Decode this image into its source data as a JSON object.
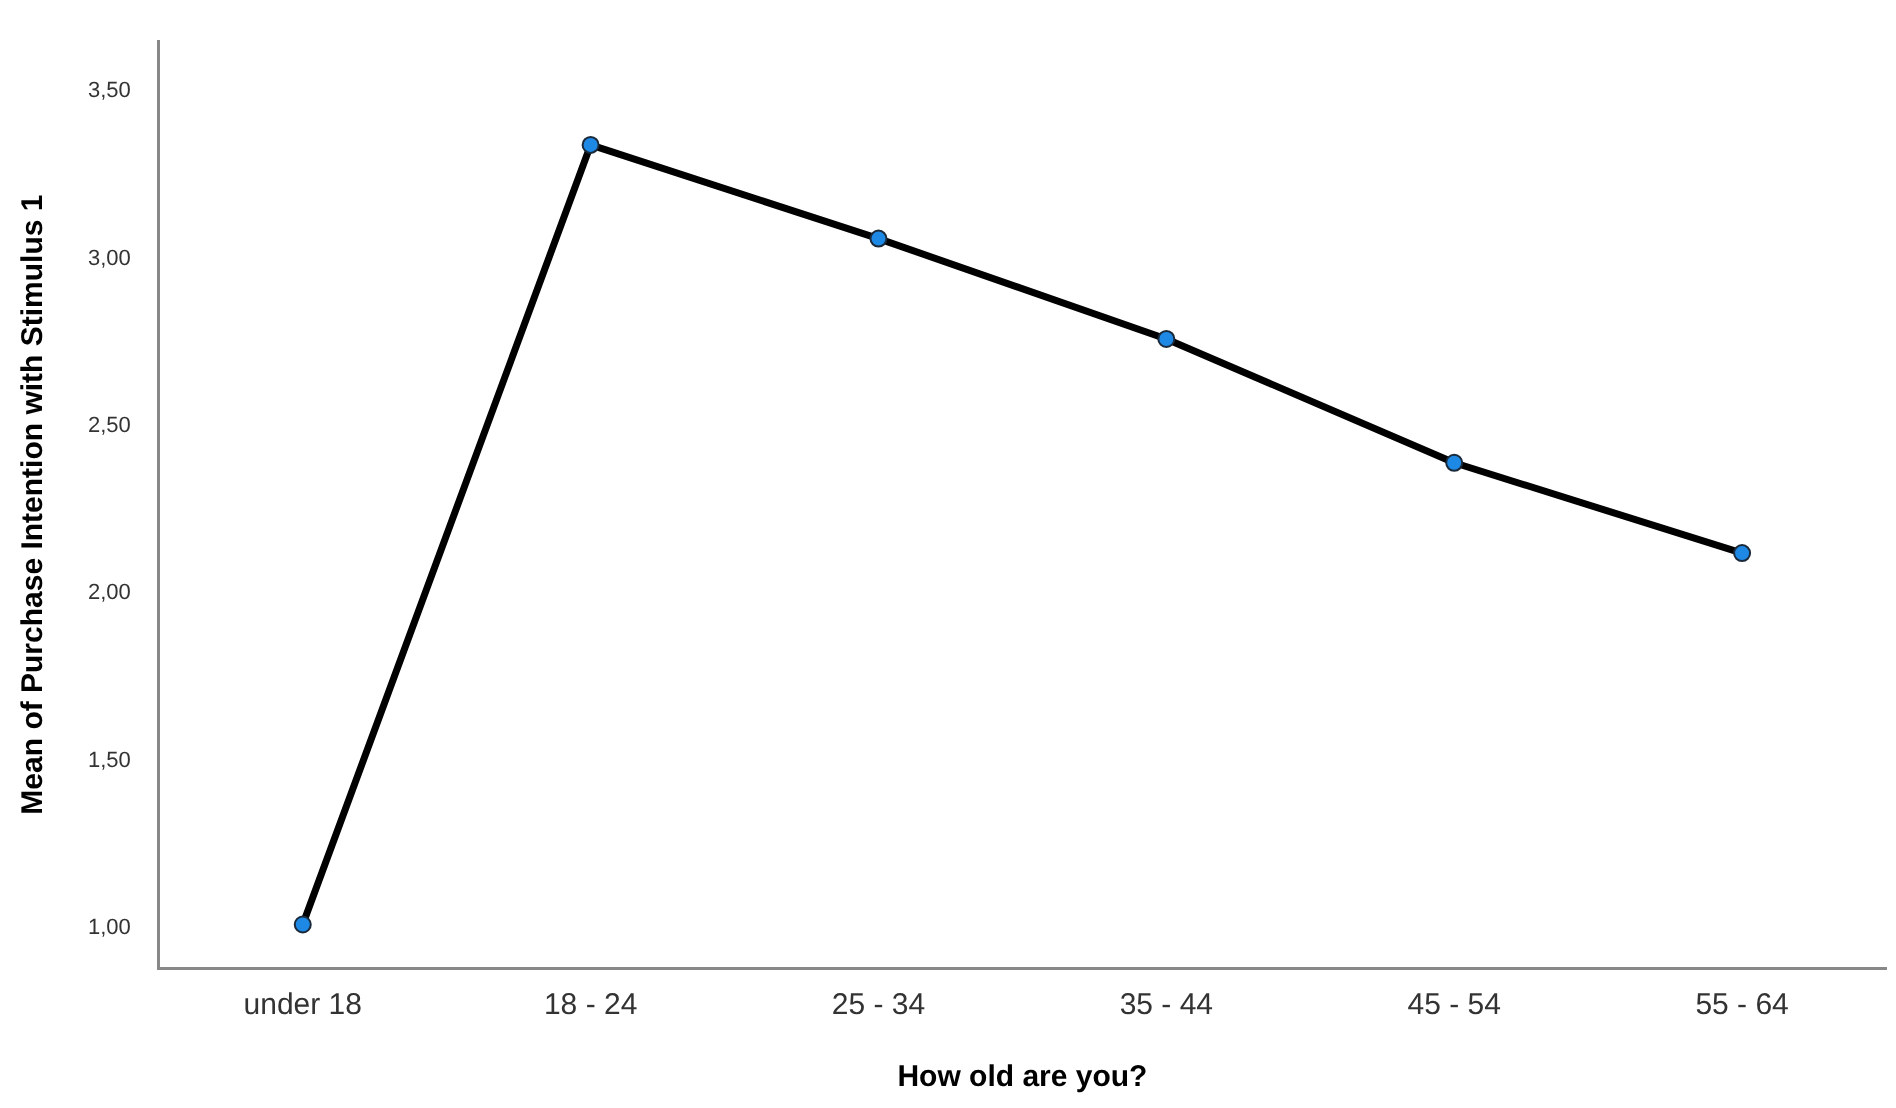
{
  "chart_data": {
    "type": "line",
    "xlabel": "How old are you?",
    "ylabel": "Mean of Purchase Intention with Stimulus 1",
    "categories": [
      "under 18",
      "18 - 24",
      "25 - 34",
      "35 - 44",
      "45 - 54",
      "55 - 64"
    ],
    "series": [
      {
        "color": "#000000",
        "values": [
          1.01,
          3.34,
          3.06,
          2.76,
          2.39,
          2.12
        ]
      }
    ],
    "ylim": [
      0.88,
      3.65
    ],
    "yticks": [
      {
        "value": 1,
        "label": "1,00"
      },
      {
        "value": 1.5,
        "label": "1,50"
      },
      {
        "value": 2,
        "label": "2,00"
      },
      {
        "value": 2.5,
        "label": "2,50"
      },
      {
        "value": 3,
        "label": "3,00"
      },
      {
        "value": 3.5,
        "label": "3,50"
      }
    ],
    "grid": false,
    "legend": false,
    "marker": "circle",
    "line_style": "solid"
  }
}
